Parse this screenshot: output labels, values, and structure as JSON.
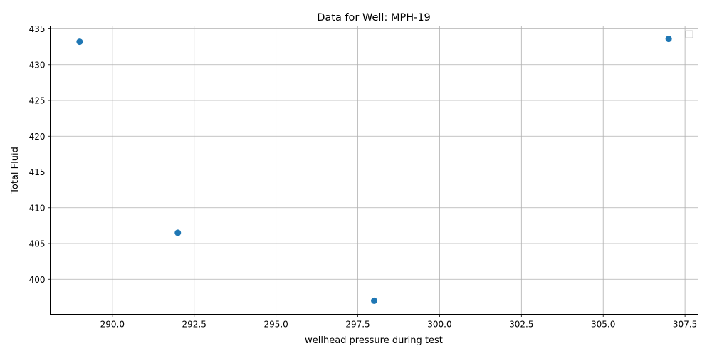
{
  "chart_data": {
    "type": "scatter",
    "title": "Data for Well: MPH-19",
    "xlabel": "wellhead pressure during test",
    "ylabel": "Total Fluid",
    "xlim": [
      288.1,
      307.9
    ],
    "ylim": [
      395.1,
      435.4
    ],
    "x_ticks": [
      290.0,
      292.5,
      295.0,
      297.5,
      300.0,
      302.5,
      305.0,
      307.5
    ],
    "x_tick_labels": [
      "290.0",
      "292.5",
      "295.0",
      "297.5",
      "300.0",
      "302.5",
      "305.0",
      "307.5"
    ],
    "y_ticks": [
      400,
      405,
      410,
      415,
      420,
      425,
      430,
      435
    ],
    "y_tick_labels": [
      "400",
      "405",
      "410",
      "415",
      "420",
      "425",
      "430",
      "435"
    ],
    "grid": true,
    "legend": "top-right",
    "series": [
      {
        "color": "#1f77b4",
        "points": [
          {
            "x": 289,
            "y": 433.2
          },
          {
            "x": 292,
            "y": 406.5
          },
          {
            "x": 298,
            "y": 397.0
          },
          {
            "x": 307,
            "y": 433.6
          }
        ]
      }
    ]
  }
}
